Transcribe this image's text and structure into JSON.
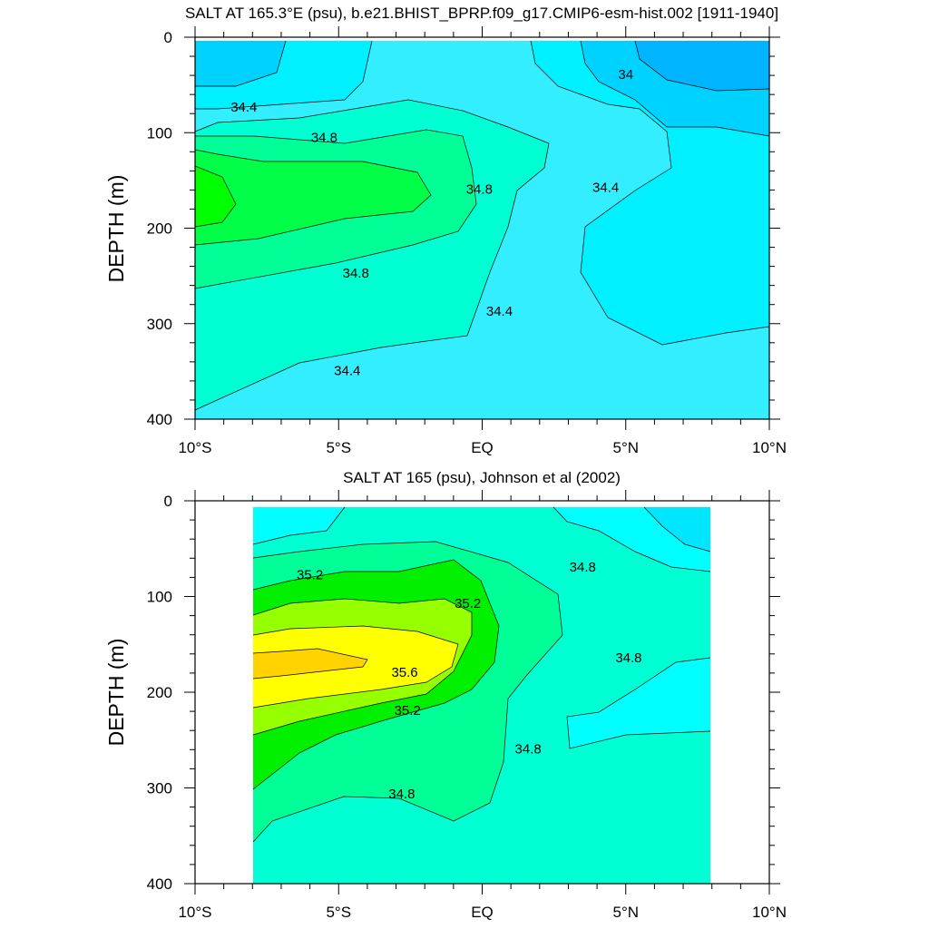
{
  "chart_data": [
    {
      "type": "contour",
      "title": "SALT AT 165.3°E (psu), b.e21.BHIST_BPRP.f09_g17.CMIP6-esm-hist.002 [1911-1940]",
      "xlabel": "",
      "ylabel": "DEPTH (m)",
      "xlim": [
        -10,
        10
      ],
      "ylim": [
        400,
        0
      ],
      "x_ticks": [
        -10,
        -5,
        0,
        5,
        10
      ],
      "x_tick_labels": [
        "10°S",
        "5°S",
        "EQ",
        "5°N",
        "10°N"
      ],
      "y_ticks": [
        0,
        100,
        200,
        300,
        400
      ],
      "y_tick_labels": [
        "0",
        "100",
        "200",
        "300",
        "400"
      ],
      "contour_interval": 0.2,
      "contour_labels": [
        {
          "text": "34",
          "lat": 5.0,
          "depth": 40
        },
        {
          "text": "34.4",
          "lat": -8.3,
          "depth": 74
        },
        {
          "text": "34.8",
          "lat": -5.5,
          "depth": 106
        },
        {
          "text": "34.8",
          "lat": -0.1,
          "depth": 160
        },
        {
          "text": "34.4",
          "lat": 4.3,
          "depth": 158
        },
        {
          "text": "34.8",
          "lat": -4.4,
          "depth": 248
        },
        {
          "text": "34.4",
          "lat": 0.6,
          "depth": 288
        },
        {
          "text": "34.4",
          "lat": -4.7,
          "depth": 350
        }
      ],
      "colors": {
        "33.8": "#0096ff",
        "34.0": "#00b4ff",
        "34.2": "#00d2ff",
        "34.4": "#00f0ff",
        "34.6": "#33eeff",
        "34.8": "#00ffd2",
        "35.0": "#00ff96",
        "35.2": "#00ff46"
      }
    },
    {
      "type": "contour",
      "title": "SALT AT 165 (psu), Johnson et al (2002)",
      "xlabel": "",
      "ylabel": "DEPTH (m)",
      "xlim": [
        -10,
        10
      ],
      "ylim": [
        400,
        0
      ],
      "x_ticks": [
        -10,
        -5,
        0,
        5,
        10
      ],
      "x_tick_labels": [
        "10°S",
        "5°S",
        "EQ",
        "5°N",
        "10°N"
      ],
      "y_ticks": [
        0,
        100,
        200,
        300,
        400
      ],
      "y_tick_labels": [
        "0",
        "100",
        "200",
        "300",
        "400"
      ],
      "data_extent_lat": [
        -8,
        8
      ],
      "contour_interval": 0.2,
      "contour_labels": [
        {
          "text": "34.8",
          "lat": 3.5,
          "depth": 70
        },
        {
          "text": "35.2",
          "lat": -6.0,
          "depth": 78
        },
        {
          "text": "35.2",
          "lat": -0.5,
          "depth": 108
        },
        {
          "text": "35.6",
          "lat": -2.7,
          "depth": 180
        },
        {
          "text": "34.8",
          "lat": 5.1,
          "depth": 165
        },
        {
          "text": "35.2",
          "lat": -2.6,
          "depth": 220
        },
        {
          "text": "34.8",
          "lat": 1.6,
          "depth": 260
        },
        {
          "text": "34.8",
          "lat": -2.8,
          "depth": 307
        }
      ],
      "colors": {
        "34.4": "#00e6ff",
        "34.6": "#00ffff",
        "34.8": "#00ffd2",
        "35.0": "#00ff96",
        "35.2": "#00f000",
        "35.4": "#96ff00",
        "35.6": "#ffff00",
        "35.8": "#ffd200"
      }
    }
  ]
}
